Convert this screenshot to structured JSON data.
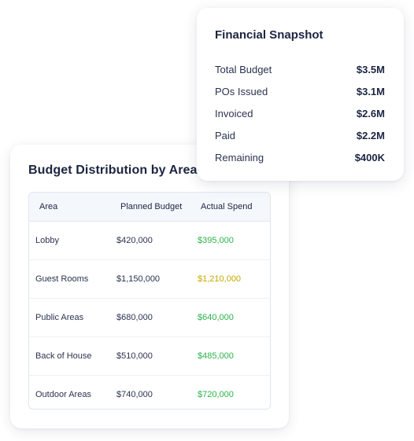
{
  "snapshot": {
    "title": "Financial Snapshot",
    "rows": [
      {
        "label": "Total Budget",
        "value": "$3.5M"
      },
      {
        "label": "POs Issued",
        "value": "$3.1M"
      },
      {
        "label": "Invoiced",
        "value": "$2.6M"
      },
      {
        "label": "Paid",
        "value": "$2.2M"
      },
      {
        "label": "Remaining",
        "value": "$400K"
      }
    ]
  },
  "distribution": {
    "title": "Budget Distribution by Area",
    "headers": {
      "area": "Area",
      "planned": "Planned Budget",
      "actual": "Actual Spend"
    },
    "rows": [
      {
        "area": "Lobby",
        "planned": "$420,000",
        "actual": "$395,000"
      },
      {
        "area": "Guest Rooms",
        "planned": "$1,150,000",
        "actual": "$1,210,000"
      },
      {
        "area": "Public Areas",
        "planned": "$680,000",
        "actual": "$640,000"
      },
      {
        "area": "Back of House",
        "planned": "$510,000",
        "actual": "$485,000"
      },
      {
        "area": "Outdoor Areas",
        "planned": "$740,000",
        "actual": "$720,000"
      }
    ]
  },
  "colors": {
    "under_budget": "#2bb34a",
    "over_budget": "#c9a800",
    "text_dark": "#1c2541"
  }
}
